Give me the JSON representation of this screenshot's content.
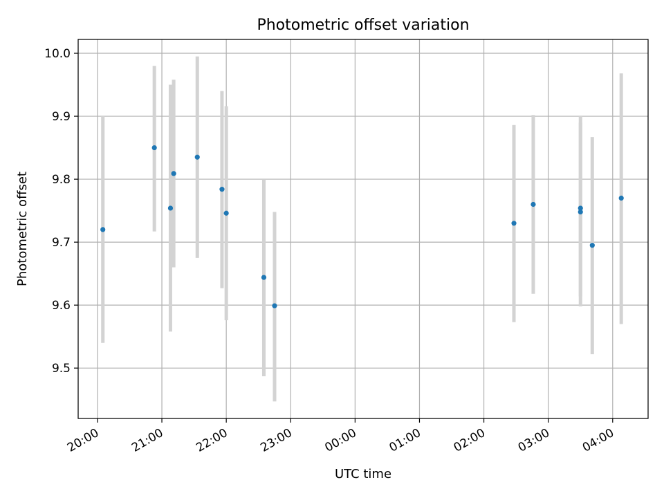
{
  "chart_data": {
    "type": "scatter",
    "title": "Photometric offset variation",
    "xlabel": "UTC time",
    "ylabel": "Photometric offset",
    "x_ticks": [
      "20:00",
      "21:00",
      "22:00",
      "23:00",
      "00:00",
      "01:00",
      "02:00",
      "03:00",
      "04:00"
    ],
    "x_tick_hours": [
      0,
      1,
      2,
      3,
      4,
      5,
      6,
      7,
      8
    ],
    "xlim_hours": [
      -0.3,
      8.55
    ],
    "y_ticks": [
      9.5,
      9.6,
      9.7,
      9.8,
      9.9,
      10.0
    ],
    "ylim": [
      9.42,
      10.022
    ],
    "grid": true,
    "series": [
      {
        "marker_color": "#1f77b4",
        "errorbar_color": "#d3d3d3",
        "points": [
          {
            "x": "20:05",
            "y": 9.72,
            "ylow": 9.54,
            "yhigh": 9.9
          },
          {
            "x": "20:53",
            "y": 9.85,
            "ylow": 9.717,
            "yhigh": 9.98
          },
          {
            "x": "21:08",
            "y": 9.754,
            "ylow": 9.558,
            "yhigh": 9.95
          },
          {
            "x": "21:11",
            "y": 9.809,
            "ylow": 9.66,
            "yhigh": 9.958
          },
          {
            "x": "21:33",
            "y": 9.835,
            "ylow": 9.675,
            "yhigh": 9.995
          },
          {
            "x": "21:56",
            "y": 9.784,
            "ylow": 9.627,
            "yhigh": 9.94
          },
          {
            "x": "22:00",
            "y": 9.746,
            "ylow": 9.576,
            "yhigh": 9.916
          },
          {
            "x": "22:35",
            "y": 9.644,
            "ylow": 9.487,
            "yhigh": 9.8
          },
          {
            "x": "22:45",
            "y": 9.599,
            "ylow": 9.447,
            "yhigh": 9.748
          },
          {
            "x": "02:28",
            "y": 9.73,
            "ylow": 9.573,
            "yhigh": 9.886
          },
          {
            "x": "02:46",
            "y": 9.76,
            "ylow": 9.618,
            "yhigh": 9.902
          },
          {
            "x": "03:30",
            "y": 9.748,
            "ylow": 9.598,
            "yhigh": 9.9
          },
          {
            "x": "03:30",
            "y": 9.754,
            "ylow": 9.614,
            "yhigh": 9.89
          },
          {
            "x": "03:41",
            "y": 9.695,
            "ylow": 9.522,
            "yhigh": 9.867
          },
          {
            "x": "04:08",
            "y": 9.77,
            "ylow": 9.57,
            "yhigh": 9.968
          }
        ]
      }
    ]
  }
}
